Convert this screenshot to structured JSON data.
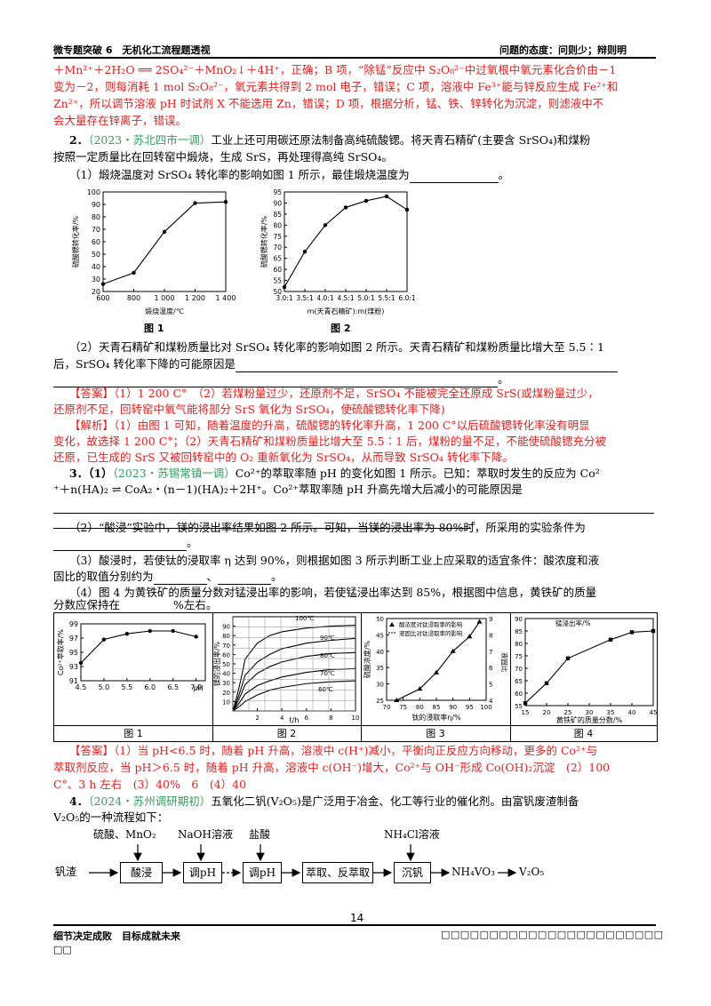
{
  "header": {
    "left": "微专题突破 6　无机化工流程题透视",
    "right": "问题的态度：问则少；辩则明"
  },
  "lines": {
    "l1": "＋Mn²⁺＋2H₂O ══ 2SO₄²⁻＋MnO₂↓＋4H⁺，正确；B 项，“除锰”反应中 S₂O₈²⁻中过氧根中氧元素化合价由－1",
    "l2": "变为－2，则每消耗 1 mol S₂O₈²⁻，氧元素共得到 2 mol 电子，错误；C 项，溶液中 Fe³⁺能与锌反应生成 Fe²⁺和",
    "l3": "Zn²⁺，所以调节溶液 pH 时试剂 X 不能选用 Zn，错误；D 项，根据分析，锰、铁、锌转化为沉淀，则滤液中不",
    "l4": "会大量存在锌离子，错误。",
    "q2_num": "2．",
    "q2_src": "（2023・苏北四市一调）",
    "q2_text": "工业上还可用碳还原法制备高纯硫酸锶。将天青石精矿(主要含 SrSO₄)和煤粉",
    "q2_l2": "按照一定质量比在回转窑中煅烧，生成 SrS，再处理得高纯 SrSO₄。",
    "q2_p1": "（1）煅烧温度对 SrSO₄ 转化率的影响如图 1 所示，最佳煅烧温度为",
    "q2_p2a": "（2）天青石精矿和煤粉质量比对 SrSO₄ 转化率的影响如图 2 所示。天青石精矿和煤粉质量比增大至 5.5∶1",
    "q2_p2b": "后，SrSO₄ 转化率下降的可能原因是",
    "ans1": "【答案】（1）1 200 C°　（2）若煤粉量过少，还原剂不足，SrSO₄ 不能被完全还原成 SrS(或煤粉量过少，",
    "ans2": "还原剂不足，回转窑中氧气能将部分 SrS 氧化为 SrSO₄，使硫酸锶转化率下降)",
    "exp1": "【解析】（1）由图 1 可知，随着温度的升高，硫酸锶的转化率升高，1 200 C°以后硫酸锶转化率没有明显",
    "exp2": "变化，故选择 1 200 C°；（2）天青石精矿和煤粉质量比增大至 5.5∶1 后，煤粉的量不足，不能使硫酸锶充分被",
    "exp3": "还原，已生成的 SrS 又被回转窑中的 O₂ 重新氧化为 SrSO₄，从而导致 SrSO₄ 转化率下降。",
    "q3_num": "3．（1）",
    "q3_src": "（2023・苏锡常镇一调）",
    "q3_text": "Co²⁺的萃取率随 pH 的变化如图 1 所示。已知：萃取时发生的反应为 Co²",
    "q3_l2": "⁺＋n(HA)₂ ⇌ CoA₂・(n－1)(HA)₂＋2H⁺。Co²⁺萃取率随 pH 升高先增大后减小的可能原因是",
    "q3_p2": "（2）“酸浸”实验中，镁的浸出率结果如图 2 所示。可知，当镁的浸出率为 80%时，所采用的实验条件为",
    "q3_p3": "（3）酸浸时，若使钛的浸取率 η 达到 90%，则根据如图 3 所示判断工业上应采取的适宜条件：酸浓度和液",
    "q3_p3b": "固比的取值分别约为",
    "q3_p4": "（4）图 4 为黄铁矿的质量分数对锰浸出率的影响，若使锰浸出率达到 85%，根据图中信息，黄铁矿的质量",
    "q3_p4b": "分数应保持在",
    "q3_p4c": "%左右。",
    "ans3a": "【答案】（1）当 pH<6.5 时，随着 pH 升高，溶液中 c(H⁺)减小，平衡向正反应方向移动，更多的 Co²⁺与",
    "ans3b": "萃取剂反应，当 pH＞6.5 时，随着 pH 升高，溶液中 c(OH⁻)增大，Co²⁺与 OH⁻形成 Co(OH)₂沉淀　(2）100",
    "ans3c": "C°、3 h 左右　(3）40%　6　(4）40",
    "q4_num": "4．",
    "q4_src": "（2024・苏州调研期初）",
    "q4_text": "五氧化二钒(V₂O₅)是广泛用于冶金、化工等行业的催化剂。由富钒废渣制备",
    "q4_l2": "V₂O₅的一种流程如下："
  },
  "fig1": {
    "caption": "图 1",
    "ylabel": "硫酸锶转化率/%",
    "xlabel": "煅烧温度/℃",
    "yticks": [
      "20",
      "30",
      "40",
      "50",
      "60",
      "70",
      "80",
      "90",
      "100"
    ],
    "xticks": [
      "600",
      "800",
      "1 000",
      "1 200",
      "1 400"
    ]
  },
  "fig2": {
    "caption": "图 2",
    "ylabel": "硫酸锶转化率/%",
    "xlabel": "m(天青石精矿):m(煤粉)",
    "yticks": [
      "50",
      "55",
      "60",
      "65",
      "70",
      "75",
      "80",
      "85",
      "90",
      "95"
    ],
    "xticks": [
      "3.0:1",
      "3.5:1",
      "4.0:1",
      "4.5:1",
      "5.0:1",
      "5.5:1",
      "6.0:1"
    ]
  },
  "figs": {
    "cap1": "图 1",
    "cap2": "图 2",
    "cap3": "图 3",
    "cap4": "图 4",
    "f1_ylabel": "Co²⁺萃取率/%",
    "f1_xlabel": "pH",
    "f1_yticks": [
      "91",
      "93",
      "95",
      "97",
      "99"
    ],
    "f1_xticks": [
      "4.5",
      "5.0",
      "5.5",
      "6.0",
      "6.5",
      "7.0"
    ],
    "f2_ylabel": "镁的浸出率/%",
    "f2_xlabel": "t/h",
    "f2_yticks": [
      "10",
      "20",
      "30",
      "40",
      "50",
      "60",
      "70",
      "80",
      "90"
    ],
    "f2_xticks": [
      "2",
      "4",
      "6",
      "8",
      "10"
    ],
    "f2_temps": [
      "100℃",
      "90℃",
      "80℃",
      "70℃",
      "60℃"
    ],
    "f3_ylabel": "硫酸浓度/%",
    "f3_y2label": "液固比",
    "f3_xlabel": "钛的浸取率η/%",
    "f3_leg1": "酸浓度对钛浸取率的影响",
    "f3_leg2": "液固比对钛浸取率的影响",
    "f3_yticks": [
      "25",
      "30",
      "35",
      "40",
      "45",
      "50"
    ],
    "f3_y2ticks": [
      "4",
      "5",
      "6",
      "7",
      "8",
      "9"
    ],
    "f3_xticks": [
      "70",
      "75",
      "80",
      "85",
      "90",
      "95",
      "100"
    ],
    "f4_ylabel": "锰浸出率/%",
    "f4_xlabel": "黄铁矿的质量分数/%",
    "f4_yticks": [
      "55",
      "60",
      "65",
      "70",
      "75",
      "80",
      "85",
      "90"
    ],
    "f4_xticks": [
      "15",
      "20",
      "25",
      "30",
      "35",
      "40",
      "45"
    ]
  },
  "flow": {
    "reagents1": "硫酸、MnO₂",
    "reagents2": "NaOH溶液",
    "reagents3": "盐酸",
    "reagents4": "NH₄Cl溶液",
    "start": "钒渣",
    "box1": "酸浸",
    "box2": "调pH",
    "box3": "调pH",
    "box4": "萃取、反萃取",
    "box5": "沉钒",
    "product1": "NH₄VO₃",
    "product2": "V₂O₅"
  },
  "footer": {
    "page": "14",
    "left": "细节决定成败　目标成就未来",
    "left2": "□□",
    "right": "□□□□□□□□□□□□□□□□□□□□□□□"
  },
  "chart_data": [
    {
      "type": "line",
      "title": "图 1",
      "xlabel": "煅烧温度/℃",
      "ylabel": "硫酸锶转化率/%",
      "x": [
        600,
        800,
        1000,
        1200,
        1400
      ],
      "values": [
        26,
        35,
        68,
        91,
        92
      ],
      "ylim": [
        20,
        100
      ],
      "xlim": [
        600,
        1400
      ]
    },
    {
      "type": "line",
      "title": "图 2",
      "xlabel": "m(天青石精矿):m(煤粉)",
      "ylabel": "硫酸锶转化率/%",
      "x": [
        3.0,
        3.5,
        4.0,
        4.5,
        5.0,
        5.5,
        6.0
      ],
      "values": [
        52,
        68,
        80,
        88,
        91,
        93,
        87
      ],
      "ylim": [
        50,
        95
      ]
    },
    {
      "type": "line",
      "title": "图 1",
      "xlabel": "pH",
      "ylabel": "Co²⁺萃取率/%",
      "x": [
        4.5,
        5.0,
        5.5,
        6.0,
        6.5,
        7.0
      ],
      "values": [
        93.5,
        96.8,
        97.6,
        98.0,
        98.0,
        97.2
      ],
      "ylim": [
        91,
        99
      ]
    },
    {
      "type": "line",
      "title": "图 2",
      "xlabel": "t/h",
      "ylabel": "镁的浸出率/%",
      "series": [
        {
          "name": "100℃",
          "x": [
            0,
            1,
            2,
            3,
            4,
            6,
            8,
            10
          ],
          "values": [
            0,
            55,
            72,
            80,
            84,
            88,
            90,
            91
          ]
        },
        {
          "name": "90℃",
          "x": [
            0,
            1,
            2,
            3,
            4,
            6,
            8,
            10
          ],
          "values": [
            0,
            38,
            52,
            60,
            66,
            72,
            75,
            77
          ]
        },
        {
          "name": "80℃",
          "x": [
            0,
            1,
            2,
            3,
            4,
            6,
            8,
            10
          ],
          "values": [
            0,
            28,
            40,
            47,
            52,
            58,
            61,
            62
          ]
        },
        {
          "name": "70℃",
          "x": [
            0,
            1,
            2,
            3,
            4,
            6,
            8,
            10
          ],
          "values": [
            0,
            18,
            27,
            32,
            36,
            41,
            44,
            45
          ]
        },
        {
          "name": "60℃",
          "x": [
            0,
            1,
            2,
            3,
            4,
            6,
            8,
            10
          ],
          "values": [
            0,
            10,
            17,
            22,
            25,
            29,
            31,
            32
          ]
        }
      ],
      "ylim": [
        0,
        100
      ],
      "xlim": [
        0,
        10
      ]
    },
    {
      "type": "line",
      "title": "图 3",
      "xlabel": "钛的浸取率η/%",
      "ylabel": "硫酸浓度/%",
      "y2label": "液固比",
      "series": [
        {
          "name": "酸浓度对钛浸取率的影响",
          "x": [
            73,
            80,
            85,
            90,
            95,
            98
          ],
          "values": [
            25,
            28.5,
            33.5,
            40,
            44.5,
            49
          ]
        },
        {
          "name": "液固比对钛浸取率的影响",
          "x": [
            73,
            80,
            85,
            90,
            95,
            98
          ],
          "values": [
            4,
            4.3,
            4.8,
            5.6,
            7,
            9
          ]
        }
      ],
      "ylim": [
        25,
        50
      ],
      "y2lim": [
        4,
        9
      ],
      "xlim": [
        70,
        100
      ]
    },
    {
      "type": "line",
      "title": "图 4",
      "xlabel": "黄铁矿的质量分数/%",
      "ylabel": "锰浸出率/%",
      "x": [
        15,
        20,
        25,
        35,
        40,
        45
      ],
      "values": [
        56,
        64,
        74,
        81.5,
        84.5,
        85
      ],
      "ylim": [
        55,
        90
      ]
    }
  ]
}
